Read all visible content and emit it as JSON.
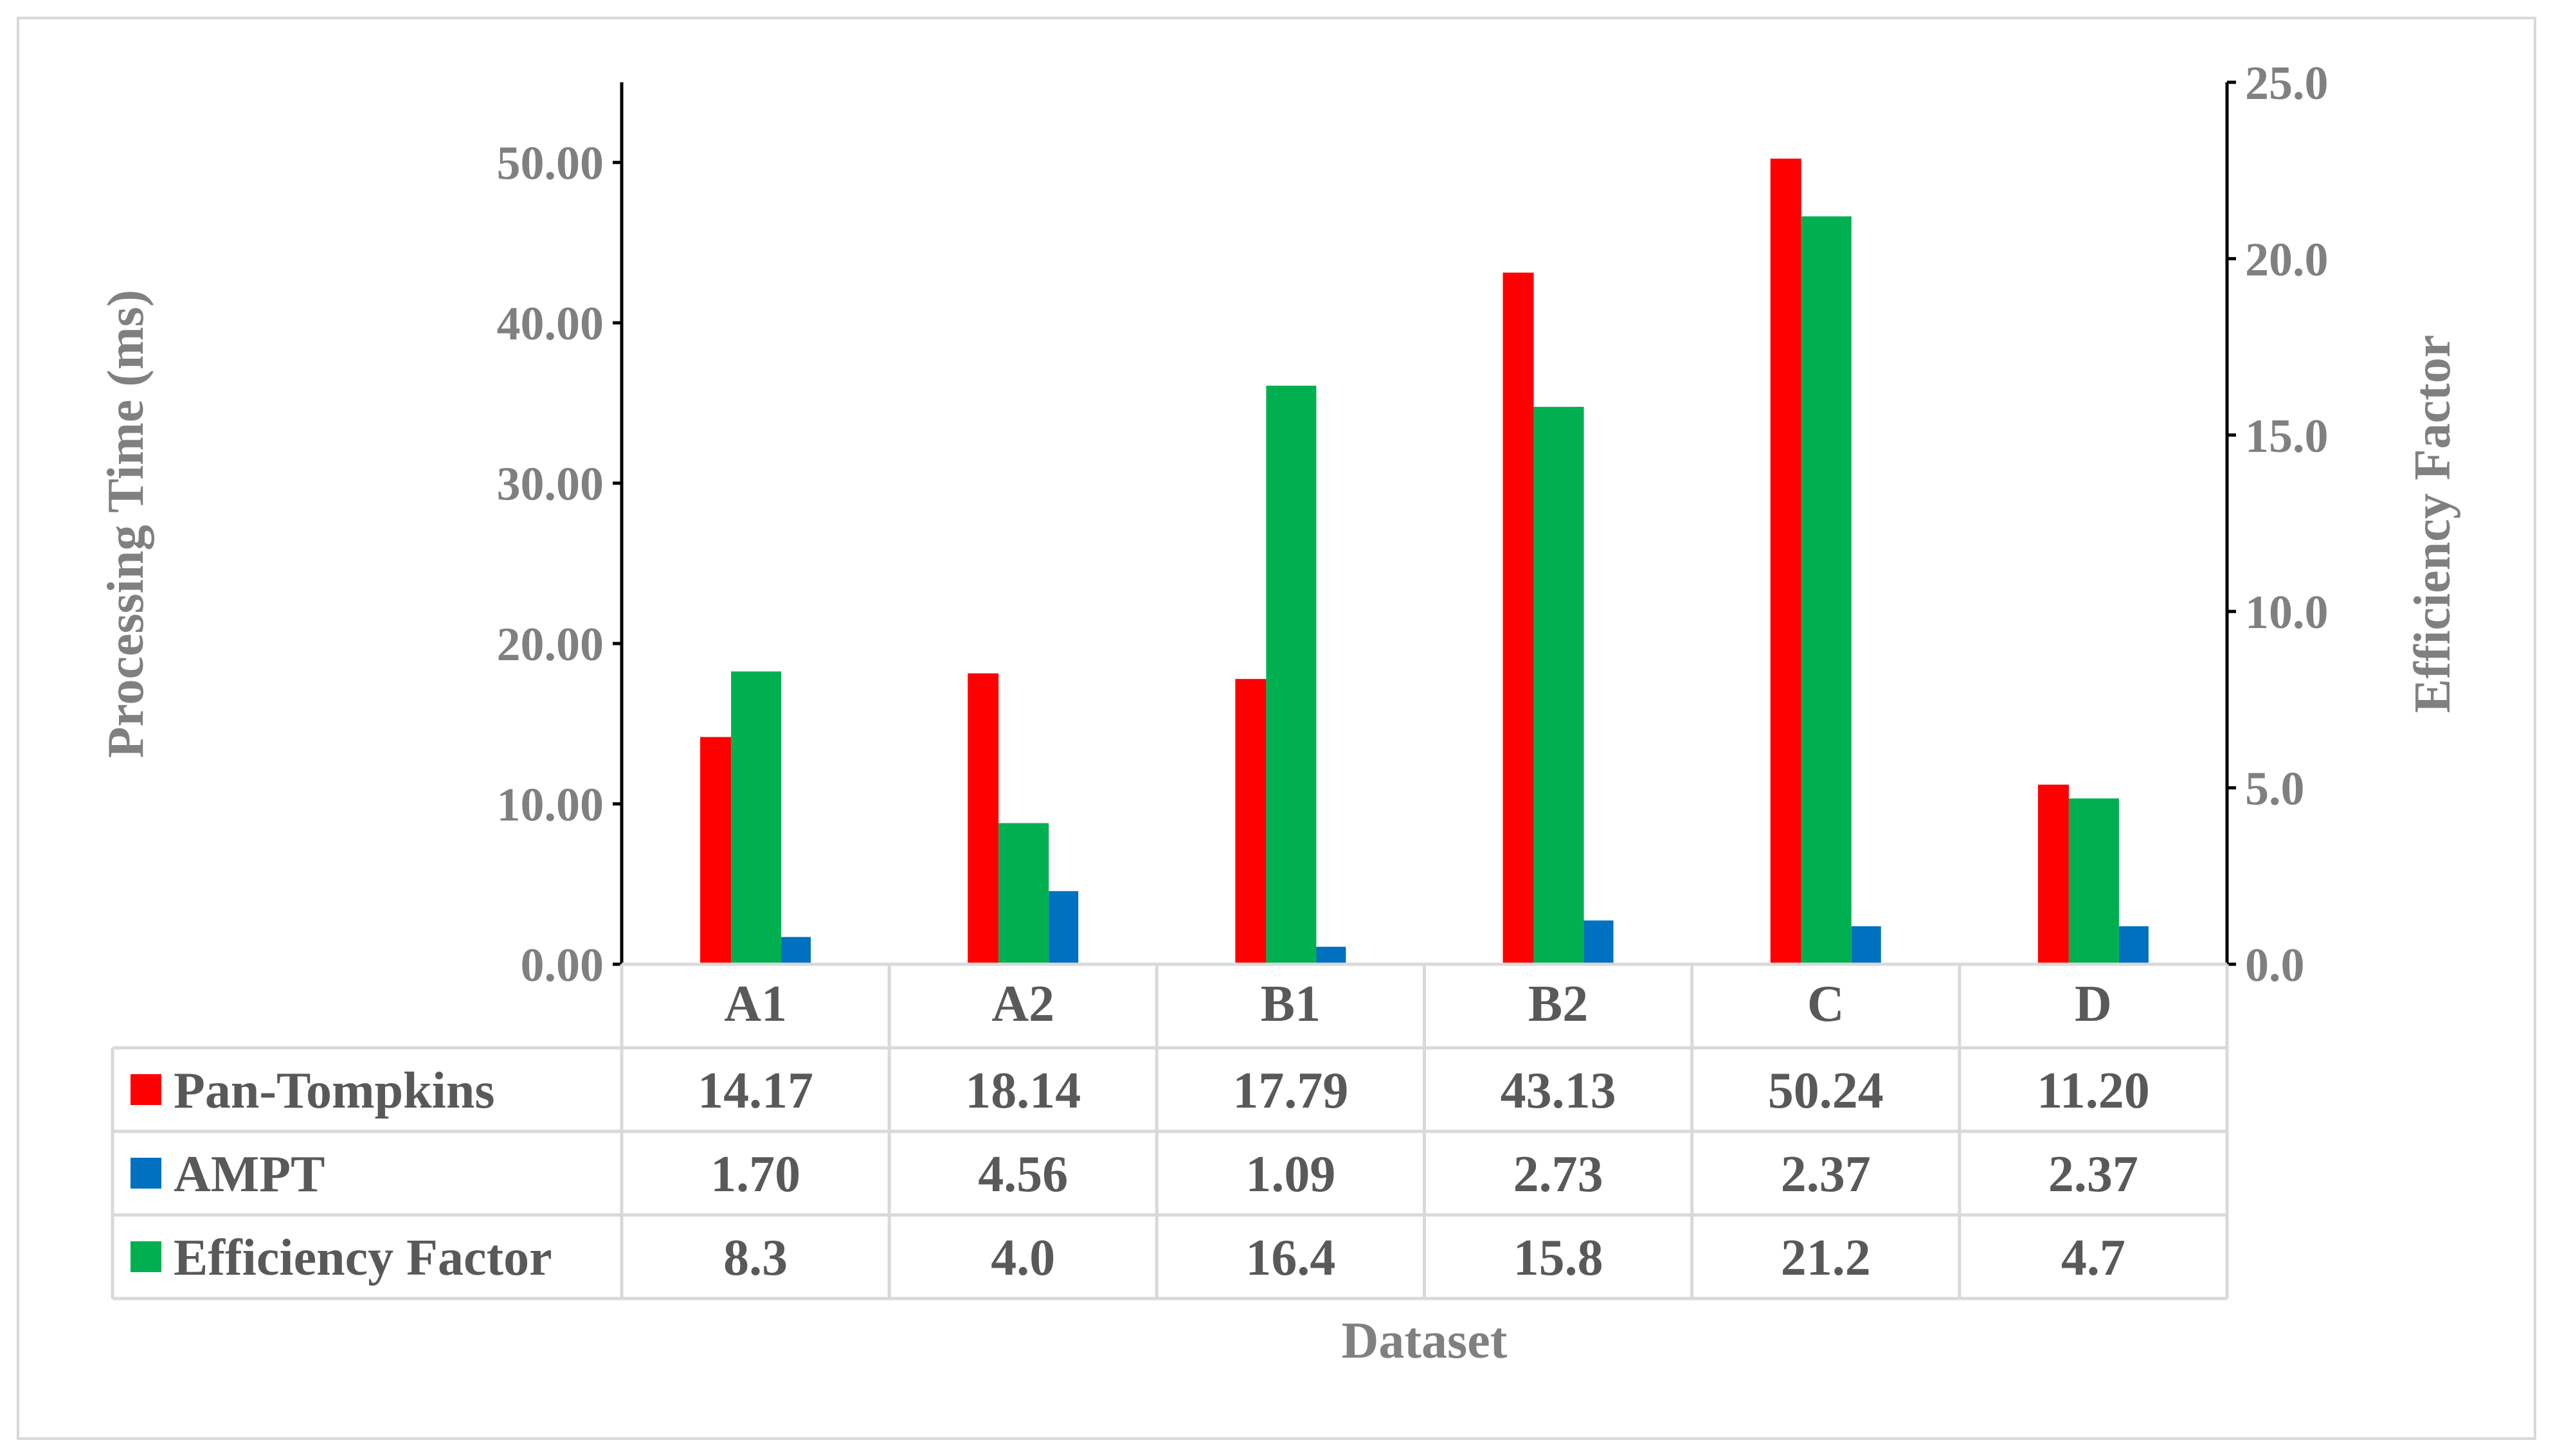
{
  "chart_data": {
    "type": "bar",
    "xlabel": "Dataset",
    "ylabel_left": "Processing Time (ms)",
    "ylabel_right": "Efficiency Factor",
    "categories": [
      "A1",
      "A2",
      "B1",
      "B2",
      "C",
      "D"
    ],
    "y_left": {
      "min": 0,
      "max": 55,
      "ticks": [
        0,
        10,
        20,
        30,
        40,
        50
      ],
      "tick_labels": [
        "0.00",
        "10.00",
        "20.00",
        "30.00",
        "40.00",
        "50.00"
      ]
    },
    "y_right": {
      "min": 0,
      "max": 25,
      "ticks": [
        0,
        5,
        10,
        15,
        20,
        25
      ],
      "tick_labels": [
        "0.0",
        "5.0",
        "10.0",
        "15.0",
        "20.0",
        "25.0"
      ]
    },
    "grid": false,
    "legend": "data-table",
    "series": [
      {
        "name": "Pan-Tompkins",
        "axis": "left",
        "color": "#ff0000",
        "values": [
          14.17,
          18.14,
          17.79,
          43.13,
          50.24,
          11.2
        ],
        "labels": [
          "14.17",
          "18.14",
          "17.79",
          "43.13",
          "50.24",
          "11.20"
        ]
      },
      {
        "name": "Efficiency Factor",
        "axis": "right",
        "color": "#00b050",
        "values": [
          8.3,
          4.0,
          16.4,
          15.8,
          21.2,
          4.7
        ],
        "labels": [
          "8.3",
          "4.0",
          "16.4",
          "15.8",
          "21.2",
          "4.7"
        ]
      },
      {
        "name": "AMPT",
        "axis": "left",
        "color": "#0070c0",
        "values": [
          1.7,
          4.56,
          1.09,
          2.73,
          2.37,
          2.37
        ],
        "labels": [
          "1.70",
          "4.56",
          "1.09",
          "2.73",
          "2.37",
          "2.37"
        ]
      }
    ],
    "table_order": [
      "Pan-Tompkins",
      "AMPT",
      "Efficiency Factor"
    ]
  }
}
